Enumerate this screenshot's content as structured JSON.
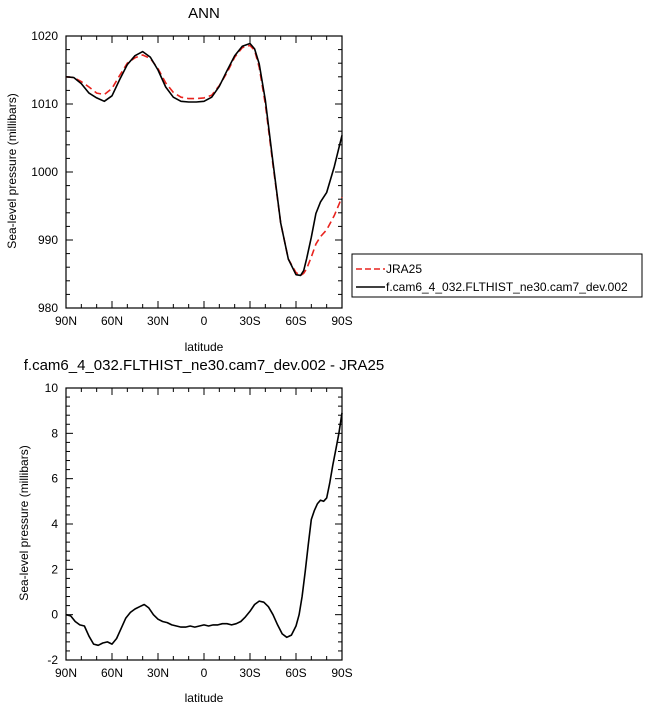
{
  "chart_data": [
    {
      "type": "line",
      "title": "ANN",
      "xlabel": "latitude",
      "ylabel": "Sea-level pressure (millibars)",
      "xlim": [
        90,
        -90
      ],
      "ylim": [
        980,
        1020
      ],
      "xticks": [
        90,
        60,
        30,
        0,
        -30,
        -60,
        -90
      ],
      "xtick_labels": [
        "90N",
        "60N",
        "30N",
        "0",
        "30S",
        "60S",
        "90S"
      ],
      "yticks": [
        980,
        990,
        1000,
        1010,
        1020
      ],
      "ytick_labels": [
        "980",
        "990",
        "1000",
        "1010",
        "1020"
      ],
      "legend_position": "right",
      "series": [
        {
          "name": "JRA25",
          "color": "#e8231e",
          "dash": true,
          "x": [
            90,
            85,
            80,
            75,
            70,
            65,
            60,
            55,
            50,
            45,
            40,
            35,
            30,
            25,
            20,
            15,
            10,
            5,
            0,
            -5,
            -10,
            -15,
            -20,
            -25,
            -30,
            -33,
            -36,
            -40,
            -45,
            -50,
            -55,
            -60,
            -63,
            -65,
            -67,
            -70,
            -73,
            -76,
            -80,
            -85,
            -90
          ],
          "y": [
            1014.0,
            1013.9,
            1013.3,
            1012.5,
            1011.6,
            1011.4,
            1012.3,
            1014.2,
            1016.0,
            1016.8,
            1017.2,
            1016.7,
            1015.2,
            1013.1,
            1011.7,
            1011.0,
            1010.8,
            1010.8,
            1010.9,
            1011.3,
            1012.7,
            1014.6,
            1016.9,
            1018.3,
            1018.6,
            1017.9,
            1015.4,
            1010.0,
            1001.0,
            992.5,
            987.2,
            985.2,
            984.8,
            985.1,
            985.8,
            987.5,
            989.4,
            990.5,
            991.5,
            993.6,
            996.3
          ]
        },
        {
          "name": "f.cam6_4_032.FLTHIST_ne30.cam7_dev.002",
          "color": "#000000",
          "dash": false,
          "x": [
            90,
            85,
            80,
            75,
            70,
            65,
            60,
            55,
            50,
            45,
            40,
            35,
            30,
            25,
            20,
            15,
            10,
            5,
            0,
            -5,
            -10,
            -15,
            -20,
            -25,
            -30,
            -33,
            -36,
            -40,
            -45,
            -50,
            -55,
            -60,
            -63,
            -65,
            -67,
            -70,
            -73,
            -76,
            -80,
            -85,
            -90
          ],
          "y": [
            1014.0,
            1013.9,
            1013.0,
            1011.6,
            1010.9,
            1010.4,
            1011.2,
            1013.6,
            1015.8,
            1017.1,
            1017.7,
            1016.9,
            1015.0,
            1012.5,
            1011.0,
            1010.4,
            1010.3,
            1010.3,
            1010.4,
            1011.0,
            1012.6,
            1014.9,
            1017.1,
            1018.5,
            1018.9,
            1018.1,
            1015.9,
            1010.6,
            1001.4,
            992.5,
            987.2,
            984.9,
            984.8,
            985.5,
            987.3,
            990.4,
            993.9,
            995.6,
            997.0,
            1000.8,
            1005.4
          ]
        }
      ]
    },
    {
      "type": "line",
      "title": "f.cam6_4_032.FLTHIST_ne30.cam7_dev.002 - JRA25",
      "xlabel": "latitude",
      "ylabel": "Sea-level pressure (millibars)",
      "xlim": [
        90,
        -90
      ],
      "ylim": [
        -2,
        10
      ],
      "xticks": [
        90,
        60,
        30,
        0,
        -30,
        -60,
        -90
      ],
      "xtick_labels": [
        "90N",
        "60N",
        "30N",
        "0",
        "30S",
        "60S",
        "90S"
      ],
      "yticks": [
        -2,
        0,
        2,
        4,
        6,
        8,
        10
      ],
      "ytick_labels": [
        "-2",
        "0",
        "2",
        "4",
        "6",
        "8",
        "10"
      ],
      "series": [
        {
          "color": "#000000",
          "x": [
            90,
            87,
            84,
            81,
            78,
            75,
            72,
            69,
            66,
            63,
            60,
            57,
            54,
            51,
            48,
            45,
            42,
            39,
            36,
            33,
            30,
            27,
            24,
            21,
            18,
            15,
            12,
            9,
            6,
            3,
            0,
            -3,
            -6,
            -9,
            -12,
            -15,
            -18,
            -21,
            -24,
            -27,
            -30,
            -33,
            -36,
            -39,
            -42,
            -45,
            -48,
            -51,
            -54,
            -57,
            -60,
            -62,
            -64,
            -66,
            -68,
            -70,
            -72,
            -74,
            -76,
            -78,
            -80,
            -82,
            -84,
            -86,
            -88,
            -90
          ],
          "y": [
            0.0,
            -0.05,
            -0.3,
            -0.45,
            -0.5,
            -0.95,
            -1.3,
            -1.35,
            -1.25,
            -1.2,
            -1.3,
            -1.05,
            -0.6,
            -0.15,
            0.1,
            0.25,
            0.35,
            0.45,
            0.3,
            0.0,
            -0.2,
            -0.3,
            -0.35,
            -0.45,
            -0.5,
            -0.55,
            -0.55,
            -0.5,
            -0.55,
            -0.5,
            -0.45,
            -0.5,
            -0.45,
            -0.45,
            -0.4,
            -0.4,
            -0.45,
            -0.4,
            -0.3,
            -0.1,
            0.15,
            0.45,
            0.6,
            0.55,
            0.35,
            0.0,
            -0.45,
            -0.85,
            -1.0,
            -0.9,
            -0.5,
            0.0,
            0.8,
            1.9,
            3.1,
            4.2,
            4.6,
            4.9,
            5.05,
            5.0,
            5.15,
            5.8,
            6.6,
            7.3,
            8.0,
            8.9
          ]
        }
      ]
    }
  ]
}
